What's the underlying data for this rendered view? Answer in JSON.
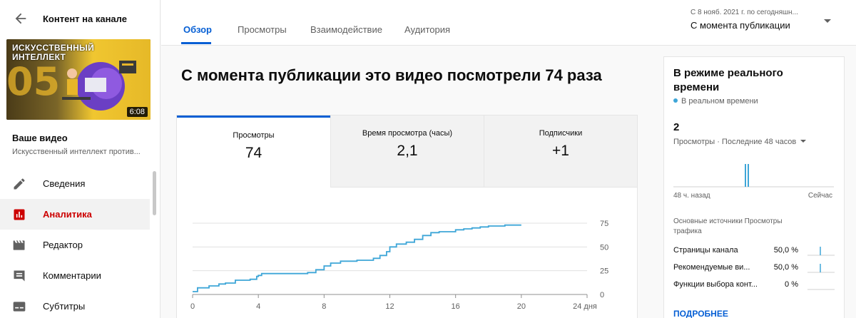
{
  "sidebar": {
    "title": "Контент на канале",
    "thumbnail": {
      "title_text": "ИСКУССТВЕННЫЙ ИНТЕЛЛЕКТ",
      "number": "05",
      "duration": "6:08"
    },
    "your_video_label": "Ваше видео",
    "video_title": "Искусственный интеллект против...",
    "items": [
      {
        "label": "Сведения",
        "icon": "pencil-icon",
        "active": false
      },
      {
        "label": "Аналитика",
        "icon": "analytics-icon",
        "active": true
      },
      {
        "label": "Редактор",
        "icon": "clapperboard-icon",
        "active": false
      },
      {
        "label": "Комментарии",
        "icon": "comment-icon",
        "active": false
      },
      {
        "label": "Субтитры",
        "icon": "subtitles-icon",
        "active": false
      }
    ]
  },
  "header": {
    "tabs": [
      "Обзор",
      "Просмотры",
      "Взаимодействие",
      "Аудитория"
    ],
    "active_tab": "Обзор",
    "date_range_sub": "С 8 нояб. 2021 г. по сегодняшн...",
    "date_range_main": "С момента публикации"
  },
  "main": {
    "title": "С момента публикации это видео посмотрели 74 раза",
    "metrics": [
      {
        "label": "Просмотры",
        "value": "74"
      },
      {
        "label": "Время просмотра (часы)",
        "value": "2,1"
      },
      {
        "label": "Подписчики",
        "value": "+1"
      }
    ]
  },
  "chart_data": {
    "type": "line",
    "series": [
      {
        "x": [
          0,
          0.3,
          1,
          1.6,
          2,
          2.6,
          3.5,
          3.9,
          4,
          4.2,
          5,
          6,
          7,
          7.5,
          8,
          8.4,
          9,
          10,
          11,
          11.4,
          11.8,
          12,
          12.4,
          13,
          13.5,
          14,
          14.5,
          15,
          15.5,
          16,
          16.5,
          17,
          17.5,
          18,
          19,
          20
        ],
        "y": [
          3,
          7,
          9,
          11,
          12,
          15,
          16,
          19,
          20,
          22,
          22,
          22,
          23,
          26,
          30,
          33,
          35,
          36,
          38,
          41,
          45,
          50,
          53,
          55,
          58,
          62,
          65,
          66,
          66,
          68,
          69,
          70,
          71,
          72,
          73,
          73
        ]
      }
    ],
    "x_ticks": [
      "0",
      "4",
      "8",
      "12",
      "16",
      "20",
      "24 дня"
    ],
    "y_ticks": [
      "0",
      "25",
      "50",
      "75"
    ],
    "xlim": [
      0,
      24
    ],
    "ylim": [
      0,
      75
    ],
    "line_color": "#3ea6d8",
    "grid": true
  },
  "realtime": {
    "title": "В режиме реального времени",
    "live_label": "В реальном времени",
    "count": "2",
    "selector": "Просмотры · Последние 48 часов",
    "axis_left": "48 ч. назад",
    "axis_right": "Сейчас",
    "sources_title": "Основные источники Просмотры трафика",
    "sources": [
      {
        "name": "Страницы канала",
        "pct": "50,0 %",
        "share": 0.5
      },
      {
        "name": "Рекомендуемые ви...",
        "pct": "50,0 %",
        "share": 0.5
      },
      {
        "name": "Функции выбора конт...",
        "pct": "0 %",
        "share": 0
      }
    ],
    "more_label": "ПОДРОБНЕЕ"
  }
}
